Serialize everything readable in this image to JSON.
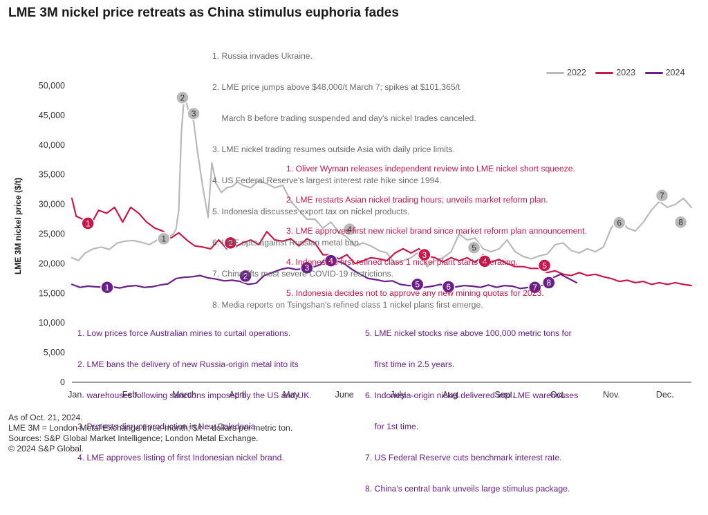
{
  "title": "LME 3M nickel price retreats as China stimulus euphoria fades",
  "chart_data": {
    "type": "line",
    "title": "LME 3M nickel price retreats as China stimulus euphoria fades",
    "xlabel": "",
    "ylabel": "LME 3M nickel price ($/t)",
    "categories": [
      "Jan.",
      "Feb.",
      "March",
      "April",
      "May",
      "June",
      "July",
      "Aug.",
      "Sept.",
      "Oct.",
      "Nov.",
      "Dec."
    ],
    "y_ticks": [
      "0",
      "5,000",
      "10,000",
      "15,000",
      "20,000",
      "25,000",
      "30,000",
      "35,000",
      "40,000",
      "45,000",
      "50,000"
    ],
    "ylim": [
      0,
      50000
    ],
    "xlim_month": [
      0,
      11.6
    ],
    "legend_position": "top-right",
    "grid": false,
    "series": [
      {
        "name": "2022",
        "color": "#b9b9b9",
        "x": [
          0,
          0.12,
          0.25,
          0.4,
          0.55,
          0.7,
          0.85,
          1.0,
          1.15,
          1.3,
          1.45,
          1.6,
          1.75,
          1.9,
          1.95,
          2.0,
          2.05,
          2.1,
          2.15,
          2.2,
          2.28,
          2.35,
          2.45,
          2.55,
          2.62,
          2.7,
          2.8,
          2.9,
          3.0,
          3.1,
          3.2,
          3.35,
          3.5,
          3.65,
          3.8,
          3.95,
          4.1,
          4.25,
          4.4,
          4.55,
          4.7,
          4.85,
          5.0,
          5.15,
          5.3,
          5.45,
          5.6,
          5.75,
          5.9,
          6.05,
          6.2,
          6.35,
          6.5,
          6.65,
          6.8,
          6.95,
          7.1,
          7.25,
          7.4,
          7.55,
          7.7,
          7.85,
          8.0,
          8.15,
          8.3,
          8.45,
          8.6,
          8.75,
          8.9,
          9.05,
          9.2,
          9.35,
          9.5,
          9.65,
          9.8,
          9.95,
          10.1,
          10.25,
          10.4,
          10.55,
          10.7,
          10.85,
          11.0,
          11.15,
          11.3,
          11.45,
          11.6
        ],
        "y": [
          21000,
          20500,
          21800,
          22500,
          22800,
          22400,
          23500,
          23800,
          23900,
          23600,
          23200,
          24000,
          24200,
          25000,
          25800,
          29000,
          42000,
          48000,
          47000,
          45000,
          44000,
          39000,
          33000,
          27800,
          37000,
          33500,
          32000,
          32800,
          33000,
          33800,
          33200,
          32800,
          34000,
          33500,
          32800,
          33200,
          30500,
          29000,
          27500,
          27500,
          26000,
          27000,
          25300,
          24500,
          23000,
          23500,
          23000,
          22200,
          21800,
          20000,
          20500,
          21000,
          22000,
          19500,
          20500,
          21000,
          22000,
          25000,
          24000,
          24300,
          22500,
          22000,
          22500,
          24000,
          22000,
          21200,
          20800,
          21300,
          21600,
          23200,
          23500,
          22200,
          21800,
          22500,
          22000,
          22800,
          26000,
          27800,
          26000,
          25500,
          27000,
          29000,
          30500,
          29500,
          30000,
          31000,
          29500
        ]
      },
      {
        "name": "2023",
        "color": "#c8174a",
        "x": [
          0,
          0.08,
          0.2,
          0.35,
          0.5,
          0.65,
          0.8,
          0.95,
          1.1,
          1.25,
          1.4,
          1.55,
          1.7,
          1.85,
          2.0,
          2.15,
          2.3,
          2.45,
          2.6,
          2.75,
          2.9,
          3.05,
          3.2,
          3.35,
          3.5,
          3.65,
          3.8,
          3.95,
          4.1,
          4.25,
          4.4,
          4.55,
          4.7,
          4.85,
          5.0,
          5.15,
          5.3,
          5.45,
          5.6,
          5.75,
          5.9,
          6.05,
          6.2,
          6.35,
          6.5,
          6.65,
          6.8,
          6.95,
          7.1,
          7.25,
          7.4,
          7.55,
          7.7,
          7.85,
          8.0,
          8.15,
          8.3,
          8.45,
          8.6,
          8.75,
          8.9,
          9.05,
          9.2,
          9.35,
          9.5,
          9.65,
          9.8,
          9.95,
          10.1,
          10.25,
          10.4,
          10.55,
          10.7,
          10.85,
          11.0,
          11.15,
          11.3,
          11.45,
          11.6
        ],
        "y": [
          31000,
          28000,
          27500,
          26500,
          29000,
          28500,
          29500,
          27000,
          29500,
          28500,
          27000,
          26000,
          25500,
          24300,
          25200,
          24000,
          23000,
          22800,
          22500,
          24000,
          22500,
          22800,
          23500,
          24000,
          23200,
          25400,
          24000,
          23800,
          24200,
          23000,
          24200,
          23500,
          21500,
          21500,
          20800,
          21500,
          20000,
          20500,
          21000,
          20800,
          20500,
          21800,
          22500,
          21800,
          22500,
          21300,
          21000,
          20300,
          21000,
          20500,
          21000,
          20200,
          21500,
          20300,
          20700,
          20000,
          19500,
          19500,
          19200,
          19200,
          18500,
          18800,
          18200,
          18000,
          18500,
          18000,
          18200,
          17800,
          17500,
          17000,
          17200,
          16800,
          17000,
          16500,
          16800,
          16500,
          16800,
          16500,
          16300
        ]
      },
      {
        "name": "2024",
        "color": "#6a1e8a",
        "x": [
          0,
          0.15,
          0.3,
          0.45,
          0.6,
          0.75,
          0.9,
          1.05,
          1.2,
          1.35,
          1.5,
          1.65,
          1.8,
          1.95,
          2.1,
          2.25,
          2.4,
          2.55,
          2.7,
          2.85,
          3.0,
          3.15,
          3.3,
          3.45,
          3.6,
          3.75,
          3.9,
          4.05,
          4.2,
          4.35,
          4.5,
          4.65,
          4.8,
          4.95,
          5.1,
          5.25,
          5.4,
          5.55,
          5.7,
          5.85,
          6.0,
          6.15,
          6.3,
          6.45,
          6.6,
          6.75,
          6.9,
          7.05,
          7.2,
          7.35,
          7.5,
          7.65,
          7.8,
          7.95,
          8.1,
          8.25,
          8.4,
          8.55,
          8.7,
          8.85,
          9.0,
          9.15,
          9.3,
          9.45
        ],
        "y": [
          16500,
          16000,
          16200,
          16100,
          16000,
          16100,
          15900,
          16200,
          16300,
          16000,
          16100,
          16400,
          16600,
          17500,
          17700,
          17800,
          18000,
          17600,
          17400,
          17100,
          17200,
          17000,
          16500,
          16700,
          18000,
          18500,
          19000,
          19300,
          19000,
          19200,
          19400,
          19800,
          21500,
          20500,
          20000,
          19000,
          18200,
          17500,
          17300,
          17000,
          17100,
          16500,
          16300,
          16300,
          16000,
          16200,
          16500,
          16000,
          16100,
          16300,
          16200,
          16000,
          16400,
          16000,
          16300,
          16200,
          15800,
          16000,
          16200,
          16400,
          17600,
          18200,
          17500,
          16800
        ]
      }
    ],
    "markers": [
      {
        "series": "2022",
        "label": "1",
        "month": 1.72,
        "value": 24200
      },
      {
        "series": "2022",
        "label": "2",
        "month": 2.07,
        "value": 48000
      },
      {
        "series": "2022",
        "label": "3",
        "month": 2.28,
        "value": 45300
      },
      {
        "series": "2022",
        "label": "4",
        "month": 5.2,
        "value": 25800
      },
      {
        "series": "2022",
        "label": "5",
        "month": 7.53,
        "value": 22700
      },
      {
        "series": "2022",
        "label": "6",
        "month": 10.25,
        "value": 26900
      },
      {
        "series": "2022",
        "label": "7",
        "month": 11.05,
        "value": 31500
      },
      {
        "series": "2022",
        "label": "8",
        "month": 11.4,
        "value": 27000
      },
      {
        "series": "2023",
        "label": "1",
        "month": 0.3,
        "value": 26800
      },
      {
        "series": "2023",
        "label": "2",
        "month": 2.97,
        "value": 23500
      },
      {
        "series": "2023",
        "label": "3",
        "month": 6.6,
        "value": 21500
      },
      {
        "series": "2023",
        "label": "4",
        "month": 7.73,
        "value": 20400
      },
      {
        "series": "2023",
        "label": "5",
        "month": 8.85,
        "value": 19700
      },
      {
        "series": "2024",
        "label": "1",
        "month": 0.66,
        "value": 16000
      },
      {
        "series": "2024",
        "label": "2",
        "month": 3.25,
        "value": 17900
      },
      {
        "series": "2024",
        "label": "3",
        "month": 4.4,
        "value": 19300
      },
      {
        "series": "2024",
        "label": "4",
        "month": 4.85,
        "value": 20500
      },
      {
        "series": "2024",
        "label": "5",
        "month": 6.47,
        "value": 16500
      },
      {
        "series": "2024",
        "label": "6",
        "month": 7.05,
        "value": 16100
      },
      {
        "series": "2024",
        "label": "7",
        "month": 8.67,
        "value": 16000
      },
      {
        "series": "2024",
        "label": "8",
        "month": 8.93,
        "value": 16800
      }
    ]
  },
  "annotations_2022": [
    "1. Russia invades Ukraine.",
    "2. LME price jumps above $48,000/t March 7; spikes at $101,365/t",
    "    March 8 before trading suspended and day's nickel trades canceled.",
    "3. LME nickel trading resumes outside Asia with daily price limits.",
    "4. US Federal Reserve's largest interest rate hike since 1994.",
    "5. Indonesia discusses export tax on nickel products.",
    "6. LME opts against Russian metal ban.",
    "7. China lifts most severe COVID-19 restrictions.",
    "8. Media reports on Tsingshan's refined class 1 nickel plans first emerge."
  ],
  "annotations_2023": [
    "1. Oliver Wyman releases independent review into LME nickel short squeeze.",
    "2. LME restarts Asian nickel trading hours; unveils market reform plan.",
    "3. LME approves first new nickel brand since market reform plan announcement.",
    "4. Indonesia's first refined class 1 nickel plant starts operating.",
    "5. Indonesia decides not to approve any new mining quotas for 2023."
  ],
  "annotations_2024_left": [
    "1. Low prices force Australian mines to curtail operations.",
    "2. LME bans the delivery of new Russia-origin metal into its",
    "    warehouses following sanctions imposed by the US and UK.",
    "3. Protests disrupt production in New Caledonia.",
    "4. LME approves listing of first Indonesian nickel brand."
  ],
  "annotations_2024_right": [
    "5. LME nickel stocks rise above 100,000 metric tons for",
    "    first time in 2.5 years.",
    "6. Indonesia-origin nickel delivered into LME warehouses",
    "    for 1st time.",
    "7. US Federal Reserve cuts benchmark interest rate.",
    "8. China's central bank unveils large stimulus package."
  ],
  "legend": {
    "s2022": "2022",
    "s2023": "2023",
    "s2024": "2024"
  },
  "footer": [
    "As of Oct. 21, 2024.",
    "LME 3M = London Metal Exchange three-month; $/t = dollars per metric ton.",
    "Sources: S&P Global Market Intelligence; London Metal Exchange.",
    "© 2024 S&P Global."
  ]
}
